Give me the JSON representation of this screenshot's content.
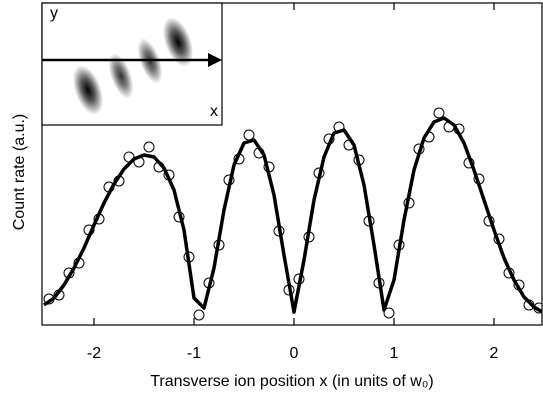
{
  "chart_data": {
    "type": "scatter_fit",
    "x_label": "Transverse ion position x (in units of w₀)",
    "y_label": "Count rate  (a.u.)",
    "xlim": [
      -2.52,
      2.48
    ],
    "ylim": [
      0,
      322
    ],
    "xticks": [
      -2,
      -1,
      0,
      1,
      2
    ],
    "inset": {
      "x_label": "x",
      "y_label": "y"
    },
    "scatter": {
      "color": "#000000",
      "x": [
        -2.45,
        -2.35,
        -2.25,
        -2.15,
        -2.05,
        -1.95,
        -1.85,
        -1.75,
        -1.65,
        -1.55,
        -1.45,
        -1.35,
        -1.25,
        -1.15,
        -1.05,
        -0.95,
        -0.85,
        -0.75,
        -0.65,
        -0.55,
        -0.45,
        -0.35,
        -0.25,
        -0.15,
        -0.05,
        0.05,
        0.15,
        0.25,
        0.35,
        0.45,
        0.55,
        0.65,
        0.75,
        0.85,
        0.95,
        1.05,
        1.15,
        1.25,
        1.35,
        1.45,
        1.55,
        1.65,
        1.75,
        1.85,
        1.95,
        2.05,
        2.15,
        2.25,
        2.35,
        2.45
      ],
      "values": [
        26,
        30,
        52,
        62,
        95,
        106,
        138,
        144,
        168,
        163,
        178,
        158,
        150,
        108,
        68,
        10,
        42,
        80,
        145,
        166,
        190,
        172,
        158,
        94,
        35,
        46,
        88,
        152,
        186,
        198,
        180,
        165,
        104,
        42,
        12,
        80,
        122,
        176,
        188,
        212,
        198,
        196,
        162,
        146,
        104,
        86,
        52,
        40,
        20,
        17
      ]
    },
    "fit": {
      "color": "#000000",
      "x": [
        -2.5,
        -2.4,
        -2.3,
        -2.2,
        -2.1,
        -2.0,
        -1.9,
        -1.8,
        -1.7,
        -1.6,
        -1.5,
        -1.4,
        -1.3,
        -1.2,
        -1.1,
        -1.0,
        -0.9,
        -0.8,
        -0.7,
        -0.6,
        -0.5,
        -0.4,
        -0.3,
        -0.2,
        -0.1,
        0.0,
        0.1,
        0.2,
        0.3,
        0.4,
        0.5,
        0.6,
        0.7,
        0.8,
        0.9,
        1.0,
        1.1,
        1.2,
        1.3,
        1.4,
        1.5,
        1.6,
        1.7,
        1.8,
        1.9,
        2.0,
        2.1,
        2.2,
        2.3,
        2.4,
        2.5
      ],
      "values": [
        20,
        27,
        40,
        57,
        77,
        100,
        122,
        141,
        156,
        166,
        170,
        168,
        157,
        135,
        95,
        27,
        17,
        57,
        115,
        160,
        182,
        185,
        170,
        130,
        70,
        13,
        65,
        125,
        168,
        192,
        195,
        180,
        140,
        80,
        15,
        45,
        105,
        155,
        187,
        203,
        207,
        200,
        182,
        155,
        125,
        95,
        67,
        45,
        28,
        18,
        12
      ]
    }
  }
}
